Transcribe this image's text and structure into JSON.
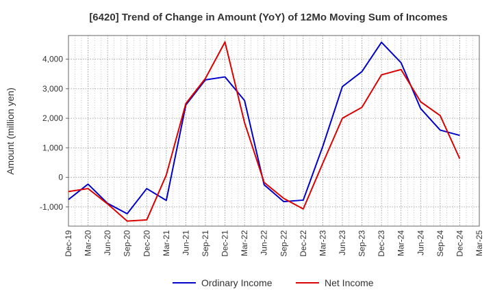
{
  "chart_data": {
    "type": "line",
    "title": "[6420]  Trend of Change in Amount (YoY) of 12Mo Moving Sum of Incomes",
    "xlabel": "",
    "ylabel": "Amount (million yen)",
    "x_ticks": [
      "Dec-19",
      "Mar-20",
      "Jun-20",
      "Sep-20",
      "Dec-20",
      "Mar-21",
      "Jun-21",
      "Sep-21",
      "Dec-21",
      "Mar-22",
      "Jun-22",
      "Sep-22",
      "Dec-22",
      "Mar-23",
      "Jun-23",
      "Sep-23",
      "Dec-23",
      "Mar-24",
      "Jun-24",
      "Sep-24",
      "Dec-24",
      "Mar-25"
    ],
    "y_ticks": [
      {
        "value": -1000,
        "label": "-1,000"
      },
      {
        "value": 0,
        "label": "0"
      },
      {
        "value": 1000,
        "label": "1,000"
      },
      {
        "value": 2000,
        "label": "2,000"
      },
      {
        "value": 3000,
        "label": "3,000"
      },
      {
        "value": 4000,
        "label": "4,000"
      }
    ],
    "ylim": [
      -1650,
      4800
    ],
    "grid": true,
    "legend_position": "bottom",
    "series": [
      {
        "name": "Ordinary Income",
        "color": "#0000cc",
        "values": [
          -750,
          -230,
          -880,
          -1230,
          -380,
          -780,
          2450,
          3300,
          3400,
          2600,
          -250,
          -820,
          -770,
          1050,
          3070,
          3580,
          4570,
          3880,
          2330,
          1600,
          1420
        ]
      },
      {
        "name": "Net Income",
        "color": "#dd0000",
        "values": [
          -480,
          -380,
          -900,
          -1480,
          -1440,
          80,
          2500,
          3350,
          4580,
          1850,
          -170,
          -710,
          -1070,
          480,
          2000,
          2370,
          3470,
          3650,
          2560,
          2090,
          630
        ]
      }
    ]
  }
}
